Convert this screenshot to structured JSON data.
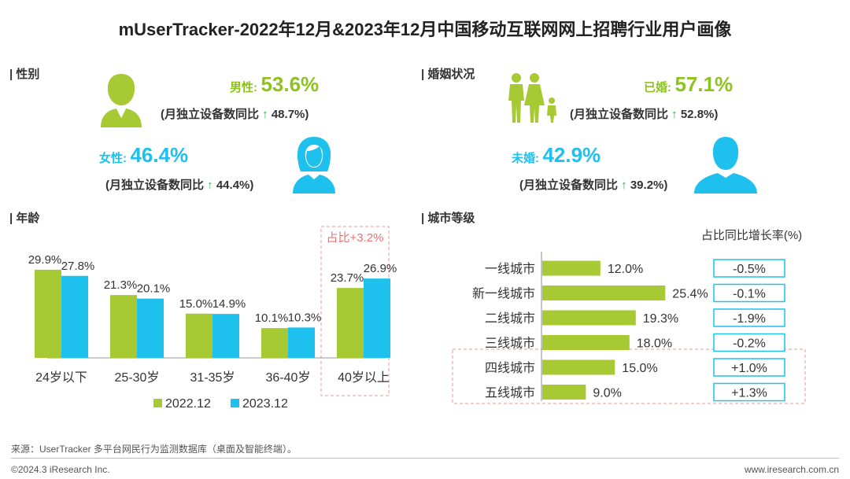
{
  "title": "mUserTracker-2022年12月&2023年12月中国移动互联网网上招聘行业用户画像",
  "colors": {
    "green": "#a6c934",
    "blue": "#1ec0ee",
    "dashed": "#e99a9a"
  },
  "gender": {
    "section": "| 性别",
    "male": {
      "label": "男性:",
      "value": "53.6%",
      "note_prefix": "(月独立设备数同比",
      "arrow": "↑",
      "note_value": "48.7%)"
    },
    "female": {
      "label": "女性:",
      "value": "46.4%",
      "note_prefix": "(月独立设备数同比",
      "arrow": "↑",
      "note_value": "44.4%)"
    }
  },
  "marriage": {
    "section": "| 婚姻状况",
    "married": {
      "label": "已婚:",
      "value": "57.1%",
      "note_prefix": "(月独立设备数同比",
      "arrow": "↑",
      "note_value": "52.8%)"
    },
    "single": {
      "label": "未婚:",
      "value": "42.9%",
      "note_prefix": "(月独立设备数同比",
      "arrow": "↑",
      "note_value": "39.2%)"
    }
  },
  "age_section": "| 年龄",
  "city_section": "| 城市等级",
  "chart_data": [
    {
      "type": "bar",
      "title": "年龄",
      "categories": [
        "24岁以下",
        "25-30岁",
        "31-35岁",
        "36-40岁",
        "40岁以上"
      ],
      "series": [
        {
          "name": "2022.12",
          "values": [
            29.9,
            21.3,
            15.0,
            10.1,
            23.7
          ]
        },
        {
          "name": "2023.12",
          "values": [
            27.8,
            20.1,
            14.9,
            10.3,
            26.9
          ]
        }
      ],
      "value_labels": [
        [
          "29.9%",
          "21.3%",
          "15.0%",
          "10.1%",
          "23.7%"
        ],
        [
          "27.8%",
          "20.1%",
          "14.9%",
          "10.3%",
          "26.9%"
        ]
      ],
      "legend": [
        "2022.12",
        "2023.12"
      ],
      "annotation": "占比+3.2%",
      "ylim": [
        0,
        32
      ]
    },
    {
      "type": "bar",
      "orientation": "horizontal",
      "title": "城市等级",
      "categories": [
        "一线城市",
        "新一线城市",
        "二线城市",
        "三线城市",
        "四线城市",
        "五线城市"
      ],
      "values": [
        12.0,
        25.4,
        19.3,
        18.0,
        15.0,
        9.0
      ],
      "value_labels": [
        "12.0%",
        "25.4%",
        "19.3%",
        "18.0%",
        "15.0%",
        "9.0%"
      ],
      "yoy_header": "占比同比增长率(%)",
      "yoy": [
        "-0.5%",
        "-0.1%",
        "-1.9%",
        "-0.2%",
        "+1.0%",
        "+1.3%"
      ],
      "xlim": [
        0,
        26
      ]
    }
  ],
  "footer": {
    "source": "来源：UserTracker 多平台网民行为监测数据库（桌面及智能终端）。",
    "copyright": "©2024.3 iResearch Inc.",
    "website": "www.iresearch.com.cn"
  }
}
